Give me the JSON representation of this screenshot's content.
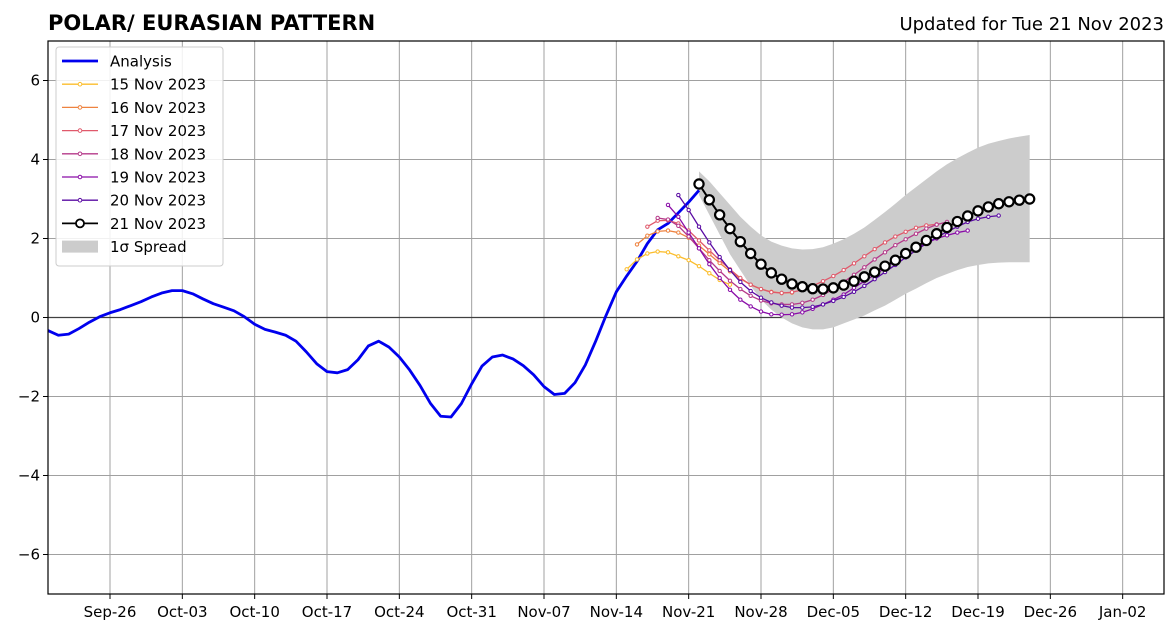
{
  "chart_data": {
    "type": "line",
    "title": "POLAR/ EURASIAN  PATTERN",
    "subtitle": "Updated for Tue 21 Nov 2023",
    "xlabel": "",
    "ylabel": "",
    "xlim": [
      "2023-09-20",
      "2024-01-06"
    ],
    "ylim": [
      -7,
      7
    ],
    "yticks": [
      6,
      4,
      2,
      0,
      -2,
      -4,
      -6
    ],
    "ytick_labels": [
      "6",
      "4",
      "2",
      "0",
      "−2",
      "−4",
      "−6"
    ],
    "xticks": [
      "2023-09-26",
      "2023-10-03",
      "2023-10-10",
      "2023-10-17",
      "2023-10-24",
      "2023-10-31",
      "2023-11-07",
      "2023-11-14",
      "2023-11-21",
      "2023-11-28",
      "2023-12-05",
      "2023-12-12",
      "2023-12-19",
      "2023-12-26",
      "2024-01-02"
    ],
    "xtick_labels": [
      "Sep-26",
      "Oct-03",
      "Oct-10",
      "Oct-17",
      "Oct-24",
      "Oct-31",
      "Nov-07",
      "Nov-14",
      "Nov-21",
      "Nov-28",
      "Dec-05",
      "Dec-12",
      "Dec-19",
      "Dec-26",
      "Jan-02"
    ],
    "grid": true,
    "zero_line": true,
    "legend": "top-left",
    "colors": {
      "analysis": "#0000ee",
      "nov15": "#fbbd2c",
      "nov16": "#ee8340",
      "nov17": "#e0596b",
      "nov18": "#b53a8a",
      "nov19": "#8a0da8",
      "nov20": "#5a0ba3",
      "nov21": "#000000",
      "spread": "#cccccc",
      "grid": "#a0a0a0"
    },
    "analysis": {
      "name": "Analysis",
      "start": "2023-09-20",
      "values": [
        -0.33,
        -0.45,
        -0.42,
        -0.28,
        -0.12,
        0.02,
        0.12,
        0.2,
        0.3,
        0.4,
        0.52,
        0.62,
        0.68,
        0.68,
        0.6,
        0.47,
        0.35,
        0.26,
        0.17,
        0.02,
        -0.17,
        -0.3,
        -0.37,
        -0.45,
        -0.6,
        -0.87,
        -1.17,
        -1.37,
        -1.4,
        -1.32,
        -1.07,
        -0.72,
        -0.6,
        -0.75,
        -1.0,
        -1.33,
        -1.72,
        -2.17,
        -2.5,
        -2.52,
        -2.18,
        -1.68,
        -1.23,
        -1.0,
        -0.95,
        -1.05,
        -1.22,
        -1.45,
        -1.75,
        -1.95,
        -1.92,
        -1.65,
        -1.2,
        -0.6,
        0.05,
        0.65,
        1.05,
        1.42,
        1.87,
        2.22,
        2.38,
        2.65,
        2.92,
        3.22
      ]
    },
    "forecasts": [
      {
        "name": "15 Nov 2023",
        "key": "nov15",
        "start": "2023-11-15",
        "values": [
          1.22,
          1.47,
          1.62,
          1.67,
          1.65,
          1.55,
          1.45,
          1.3,
          1.12,
          0.95,
          0.83
        ]
      },
      {
        "name": "16 Nov 2023",
        "key": "nov16",
        "start": "2023-11-16",
        "values": [
          1.85,
          2.07,
          2.18,
          2.2,
          2.15,
          2.02,
          1.82,
          1.6,
          1.38,
          1.17,
          0.98,
          0.83,
          0.72,
          0.65,
          0.62,
          0.63
        ]
      },
      {
        "name": "17 Nov 2023",
        "key": "nov17",
        "start": "2023-11-17",
        "values": [
          2.3,
          2.45,
          2.46,
          2.38,
          2.2,
          1.95,
          1.7,
          1.45,
          1.22,
          1.0,
          0.83,
          0.72,
          0.64,
          0.62,
          0.64,
          0.7,
          0.8,
          0.92,
          1.05,
          1.2,
          1.37,
          1.55,
          1.73,
          1.9,
          2.05,
          2.17,
          2.27,
          2.33,
          2.36
        ]
      },
      {
        "name": "18 Nov 2023",
        "key": "nov18",
        "start": "2023-11-18",
        "values": [
          2.52,
          2.48,
          2.32,
          2.05,
          1.75,
          1.45,
          1.18,
          0.93,
          0.72,
          0.55,
          0.43,
          0.36,
          0.33,
          0.33,
          0.37,
          0.45,
          0.57,
          0.72,
          0.9,
          1.08,
          1.27,
          1.47,
          1.65,
          1.83,
          1.98,
          2.12,
          2.25,
          2.35,
          2.42
        ]
      },
      {
        "name": "19 Nov 2023",
        "key": "nov19",
        "start": "2023-11-19",
        "values": [
          2.85,
          2.55,
          2.15,
          1.75,
          1.35,
          1.0,
          0.7,
          0.45,
          0.28,
          0.15,
          0.08,
          0.07,
          0.08,
          0.13,
          0.22,
          0.33,
          0.45,
          0.58,
          0.75,
          0.92,
          1.08,
          1.25,
          1.43,
          1.6,
          1.75,
          1.88,
          2.0,
          2.08,
          2.15,
          2.2
        ]
      },
      {
        "name": "20 Nov 2023",
        "key": "nov20",
        "start": "2023-11-20",
        "values": [
          3.1,
          2.72,
          2.3,
          1.9,
          1.53,
          1.2,
          0.9,
          0.67,
          0.5,
          0.38,
          0.3,
          0.25,
          0.25,
          0.27,
          0.33,
          0.42,
          0.52,
          0.65,
          0.8,
          0.97,
          1.15,
          1.33,
          1.52,
          1.7,
          1.87,
          2.03,
          2.17,
          2.3,
          2.42,
          2.5,
          2.55,
          2.58
        ]
      },
      {
        "name": "21 Nov 2023",
        "key": "nov21",
        "start": "2023-11-22",
        "values": [
          3.38,
          2.98,
          2.6,
          2.25,
          1.92,
          1.62,
          1.35,
          1.13,
          0.97,
          0.85,
          0.78,
          0.73,
          0.72,
          0.75,
          0.82,
          0.92,
          1.03,
          1.15,
          1.3,
          1.45,
          1.62,
          1.78,
          1.95,
          2.12,
          2.28,
          2.43,
          2.57,
          2.7,
          2.8,
          2.88,
          2.93,
          2.97,
          3.0
        ]
      }
    ],
    "spread": {
      "name": "1σ Spread",
      "start": "2023-11-22",
      "upper": [
        3.7,
        3.45,
        3.15,
        2.85,
        2.55,
        2.3,
        2.08,
        1.92,
        1.82,
        1.75,
        1.72,
        1.73,
        1.78,
        1.87,
        1.98,
        2.12,
        2.28,
        2.47,
        2.67,
        2.88,
        3.1,
        3.3,
        3.5,
        3.7,
        3.88,
        4.03,
        4.17,
        4.3,
        4.4,
        4.47,
        4.53,
        4.58,
        4.62
      ],
      "lower": [
        3.1,
        2.6,
        2.1,
        1.6,
        1.2,
        0.8,
        0.45,
        0.2,
        0.0,
        -0.15,
        -0.25,
        -0.3,
        -0.3,
        -0.25,
        -0.15,
        -0.05,
        0.05,
        0.18,
        0.3,
        0.45,
        0.6,
        0.73,
        0.87,
        1.0,
        1.1,
        1.2,
        1.28,
        1.33,
        1.37,
        1.39,
        1.4,
        1.4,
        1.4
      ]
    }
  }
}
